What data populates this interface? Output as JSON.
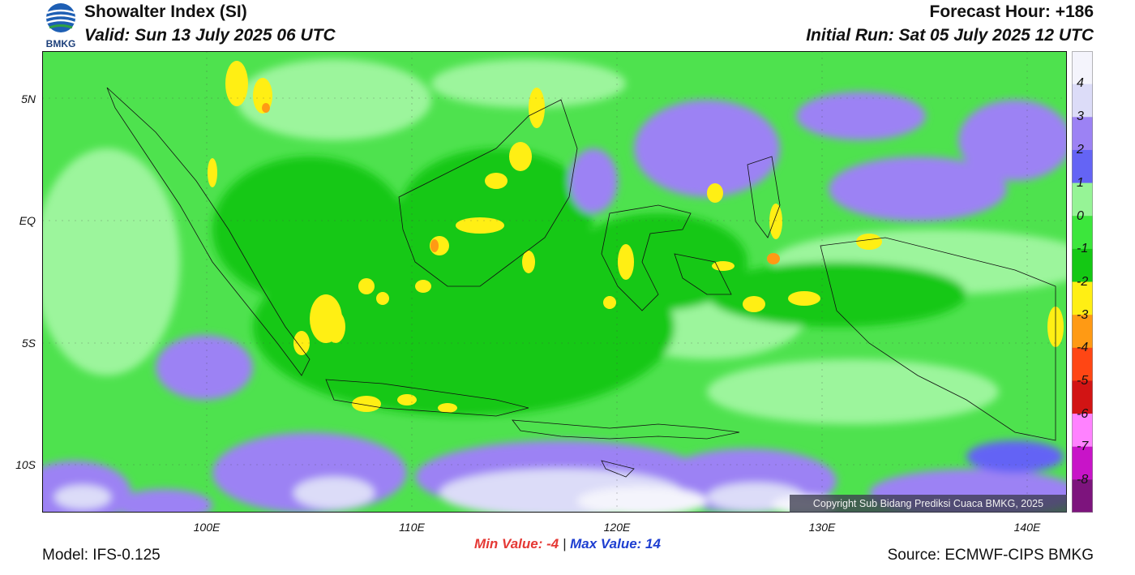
{
  "header": {
    "title": "Showalter Index (SI)",
    "valid": "Valid: Sun 13 July 2025 06 UTC",
    "forecast_hour": "Forecast Hour: +186",
    "initial_run": "Initial Run: Sat 05 July 2025 12 UTC"
  },
  "logo": {
    "text": "BMKG"
  },
  "axes": {
    "lat_labels": [
      "5N",
      "EQ",
      "5S",
      "10S"
    ],
    "lon_labels": [
      "100E",
      "110E",
      "120E",
      "130E",
      "140E"
    ]
  },
  "legend": {
    "labels": [
      "4",
      "3",
      "2",
      "1",
      "0",
      "-1",
      "-2",
      "-3",
      "-4",
      "-5",
      "-6",
      "-7",
      "-8"
    ],
    "colors": [
      "#f4f4fc",
      "#dcdcf8",
      "#9c82f4",
      "#6464f5",
      "#96f496",
      "#3ce63c",
      "#14c814",
      "#ffef14",
      "#ff9a14",
      "#ff4614",
      "#d21414",
      "#ff82ff",
      "#c814c8",
      "#7d147d"
    ]
  },
  "stats": {
    "min_label": "Min Value:  -4",
    "separator": "|",
    "max_label": "Max Value:  14"
  },
  "copyright": "Copyright Sub Bidang Prediksi Cuaca BMKG, 2025",
  "footer": {
    "model": "Model: IFS-0.125",
    "source": "Source: ECMWF-CIPS BMKG"
  }
}
